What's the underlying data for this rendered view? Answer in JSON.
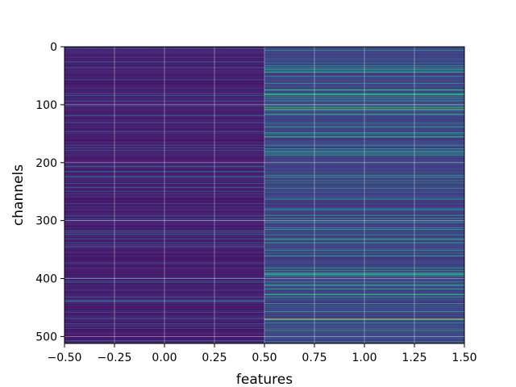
{
  "chart_data": {
    "type": "heatmap",
    "title": "",
    "xlabel": "features",
    "ylabel": "channels",
    "xlim": [
      -0.5,
      1.5
    ],
    "ylim": [
      512,
      0
    ],
    "y_inverted": true,
    "grid": true,
    "legend": "none",
    "colormap": "viridis",
    "x_ticks": [
      -0.5,
      -0.25,
      0.0,
      0.25,
      0.5,
      0.75,
      1.0,
      1.25,
      1.5
    ],
    "x_tick_labels": [
      "−0.50",
      "−0.25",
      "0.00",
      "0.25",
      "0.50",
      "0.75",
      "1.00",
      "1.25",
      "1.50"
    ],
    "y_ticks": [
      0,
      100,
      200,
      300,
      400,
      500
    ],
    "y_tick_labels": [
      "0",
      "100",
      "200",
      "300",
      "400",
      "500"
    ],
    "columns": [
      0,
      1
    ],
    "rows": 512,
    "matrix_note_col0_level": 0.06,
    "matrix_note_col1_level": 0.18,
    "notable_rows": [
      {
        "row": 108,
        "column": 1,
        "level": 0.85
      },
      {
        "row": 470,
        "column": 1,
        "level": 0.97
      },
      {
        "row": 355,
        "column": 1,
        "level": 0.55
      },
      {
        "row": 282,
        "column": 1,
        "level": 0.5
      },
      {
        "row": 28,
        "column": 1,
        "level": 0.45
      }
    ]
  }
}
